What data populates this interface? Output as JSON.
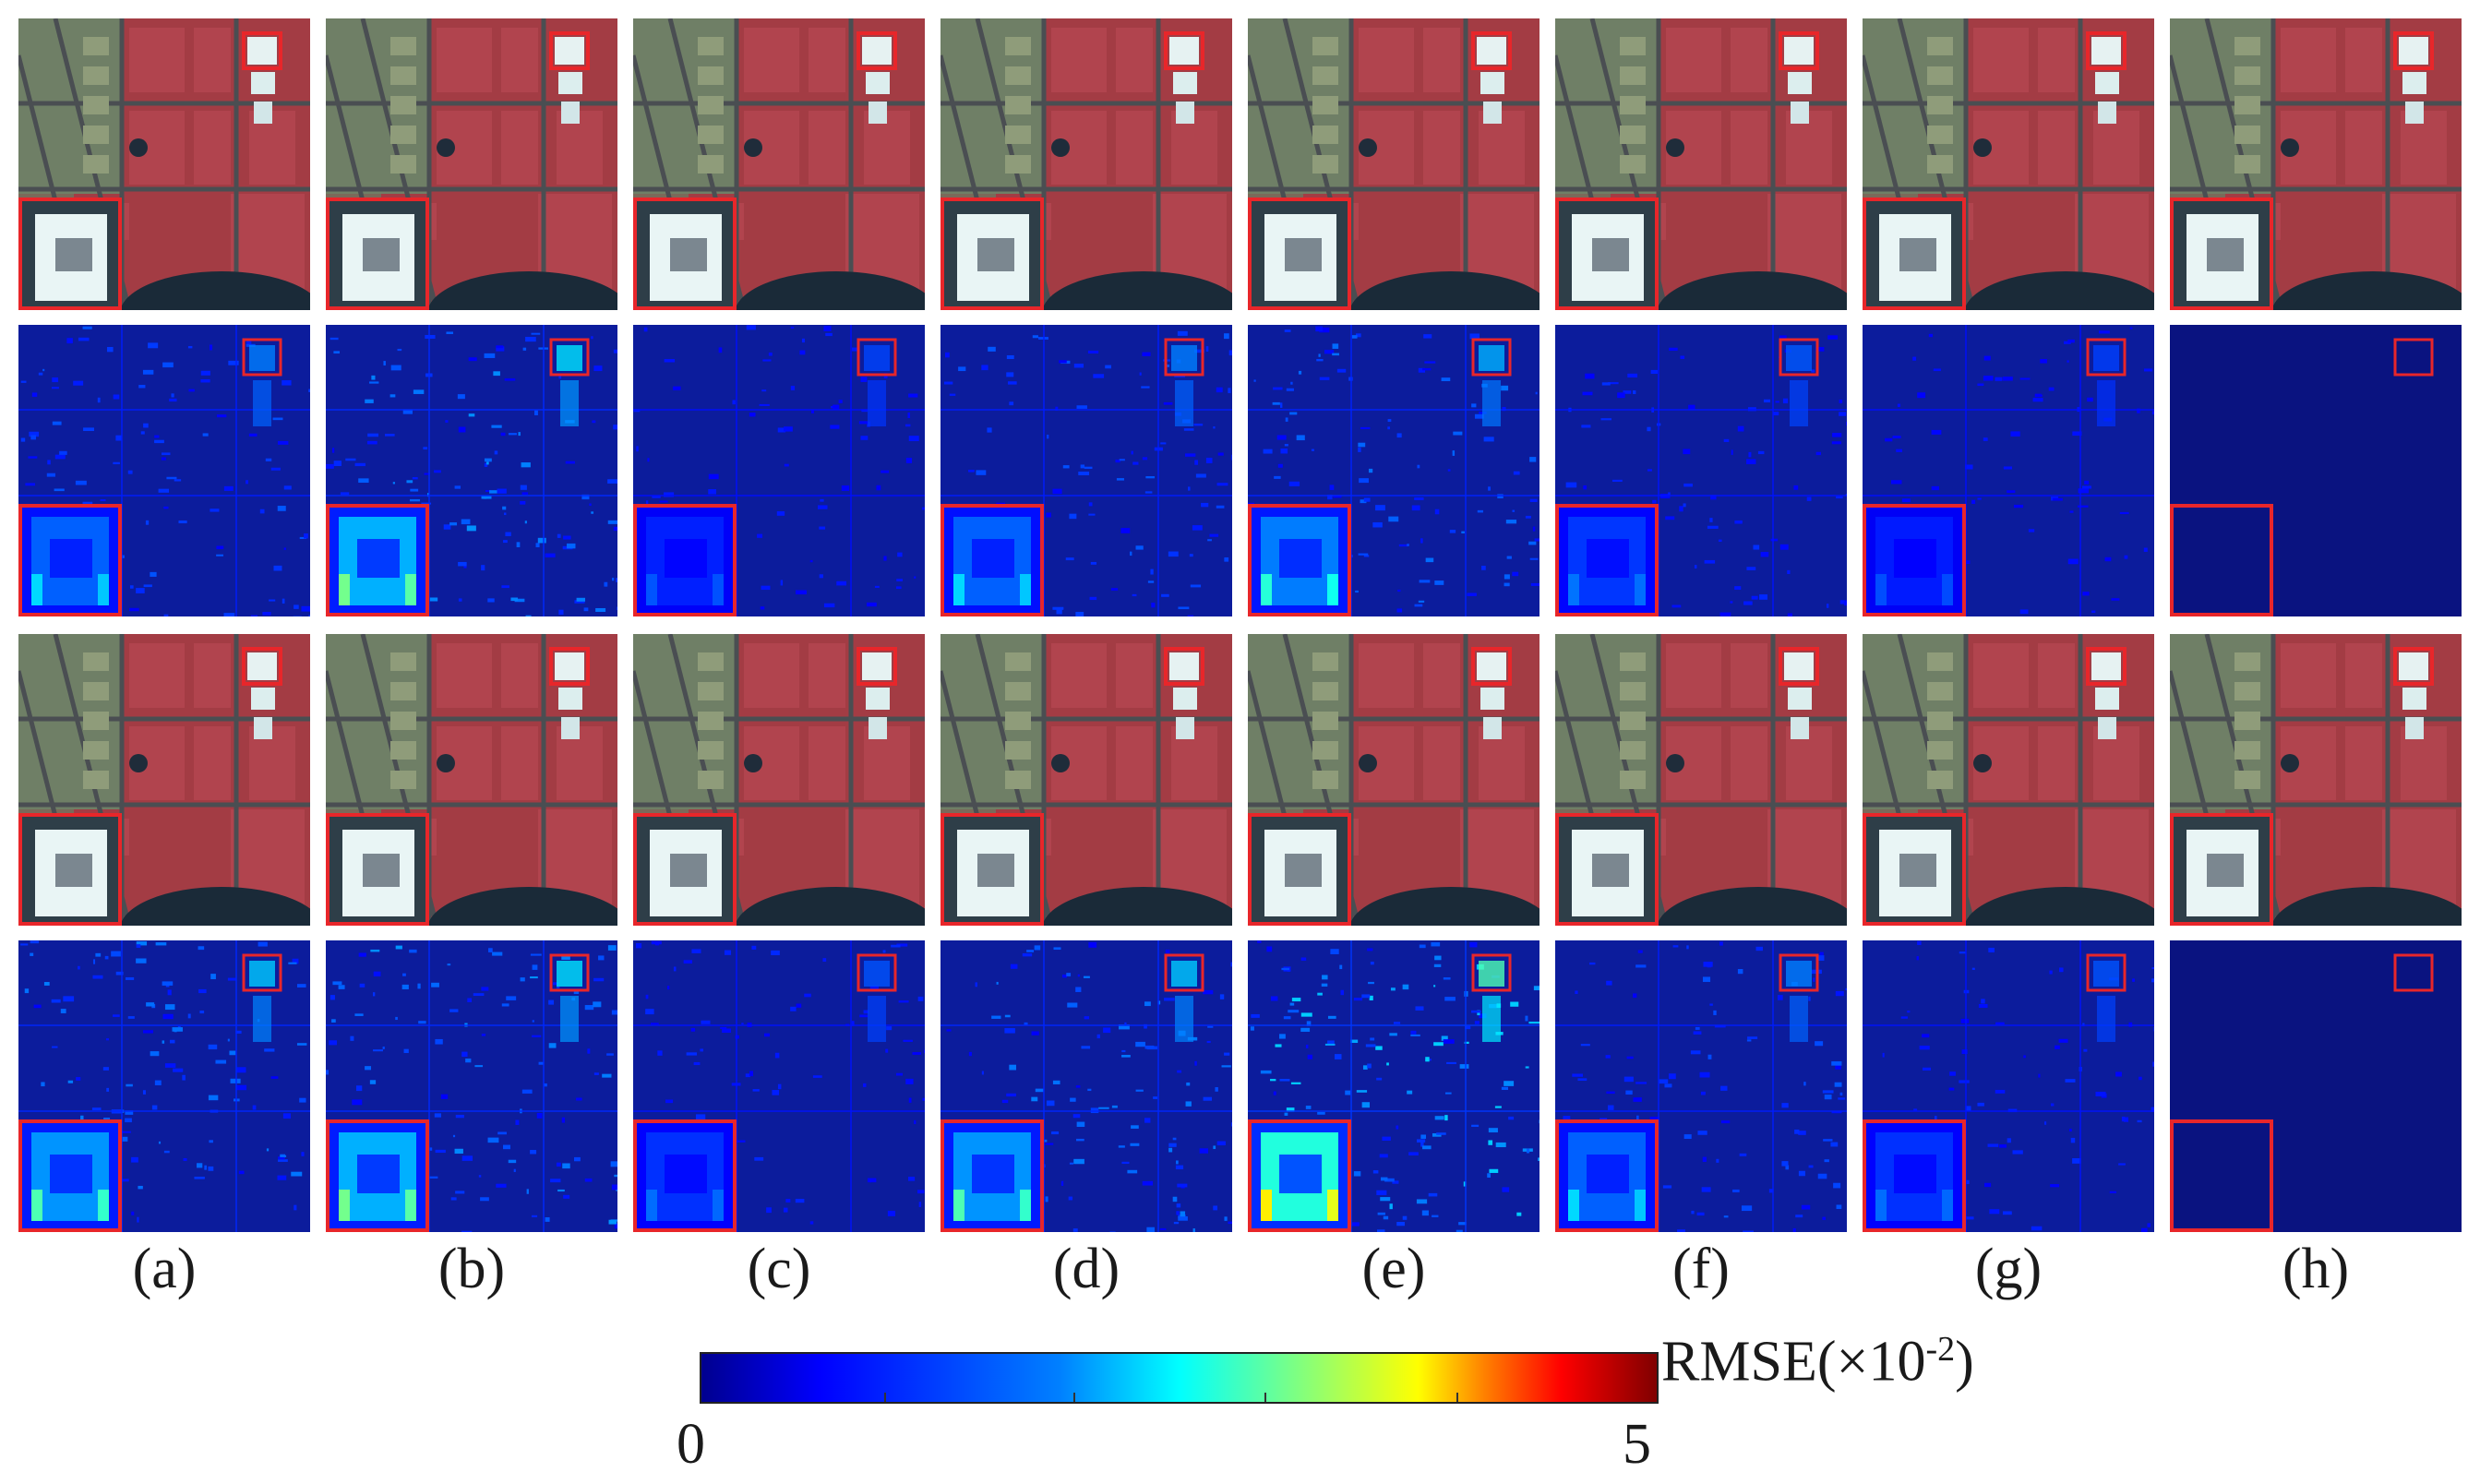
{
  "figure": {
    "columns": [
      "(a)",
      "(b)",
      "(c)",
      "(d)",
      "(e)",
      "(f)",
      "(g)",
      "(h)"
    ],
    "rows": [
      {
        "kind": "rgb",
        "name": "fused-image-row-1"
      },
      {
        "kind": "error",
        "name": "error-map-row-1"
      },
      {
        "kind": "rgb",
        "name": "fused-image-row-2"
      },
      {
        "kind": "error",
        "name": "error-map-row-2"
      }
    ],
    "error_intensity": [
      [
        0.35,
        0.55,
        0.12,
        0.35,
        0.45,
        0.2,
        0.1,
        0.0
      ],
      [
        0.5,
        0.55,
        0.18,
        0.5,
        0.75,
        0.35,
        0.18,
        0.0
      ]
    ],
    "highlight_color": "#e8262a",
    "map_base_color": "#0c1c9c"
  },
  "colorbar": {
    "label_main": "RMSE",
    "label_paren_open": "(",
    "label_mult": "×10",
    "label_exp": "-2",
    "label_paren_close": ")",
    "min_label": "0",
    "max_label": "5",
    "min": 0,
    "max": 5,
    "colormap": "jet"
  }
}
